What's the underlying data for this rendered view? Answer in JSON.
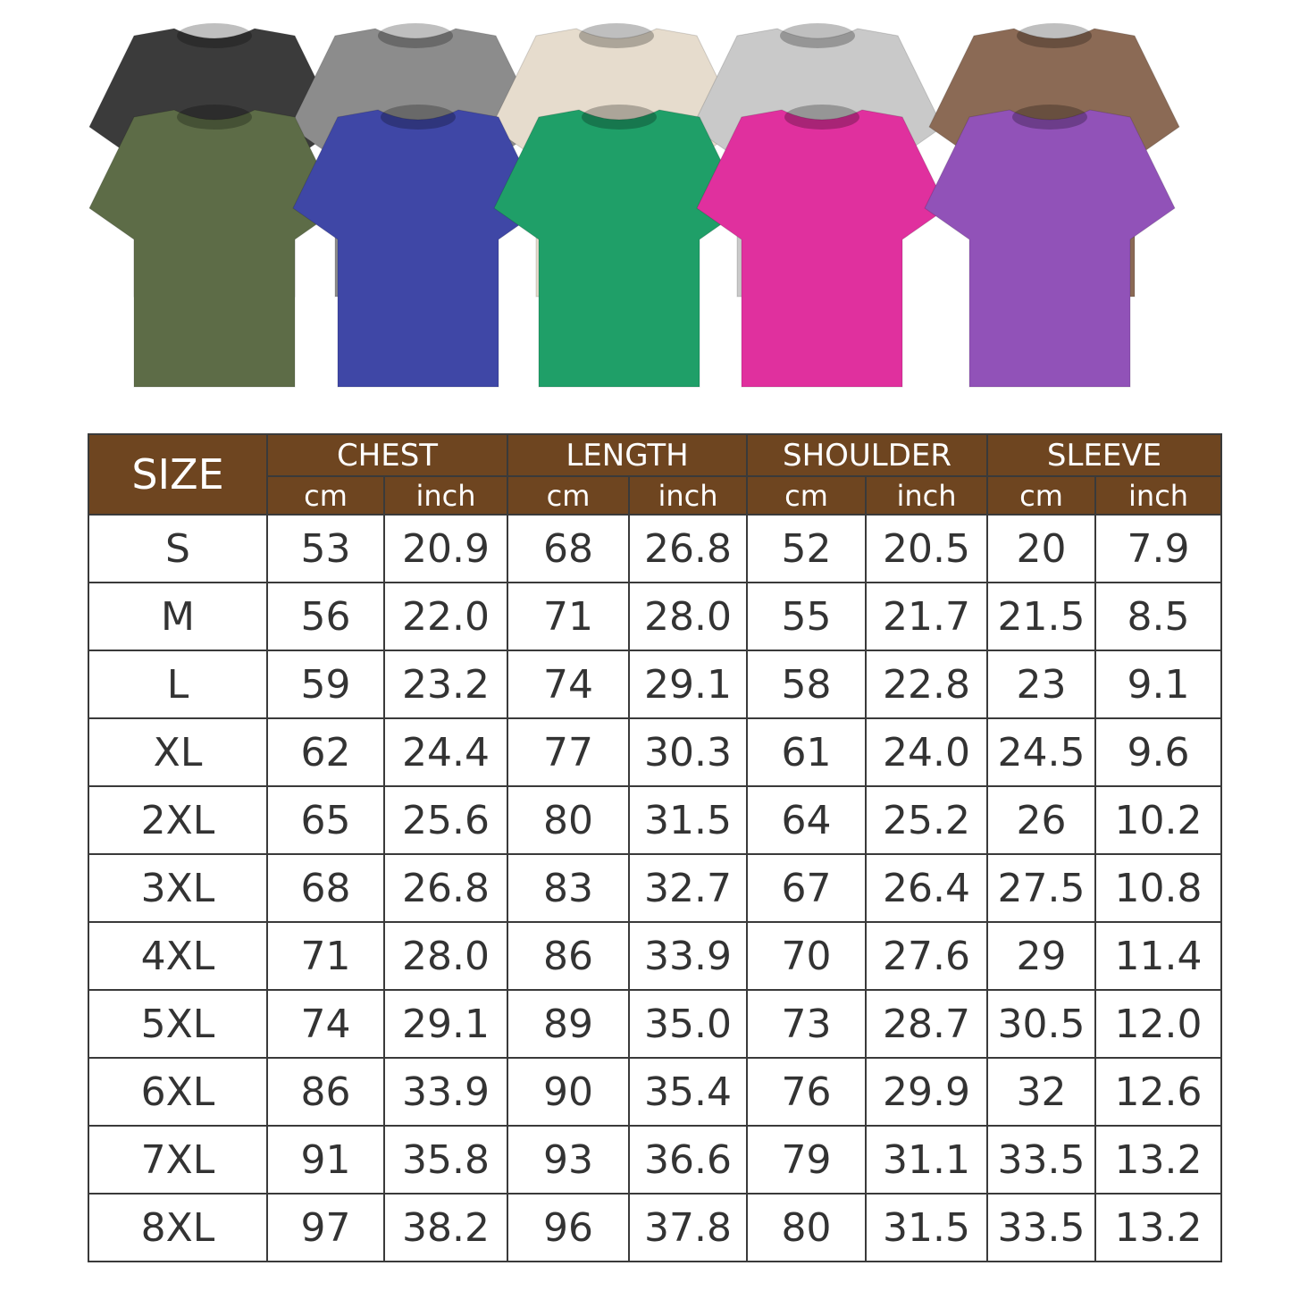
{
  "shirts": [
    {
      "color": "#3b3b3b",
      "row": "back"
    },
    {
      "color": "#8c8c8c",
      "row": "back"
    },
    {
      "color": "#e6dccd",
      "row": "back"
    },
    {
      "color": "#c9c9c9",
      "row": "back"
    },
    {
      "color": "#8b6a55",
      "row": "back"
    },
    {
      "color": "#5d6c47",
      "row": "front"
    },
    {
      "color": "#3f47a6",
      "row": "front"
    },
    {
      "color": "#1f9f68",
      "row": "front"
    },
    {
      "color": "#e0309e",
      "row": "front"
    },
    {
      "color": "#9152b8",
      "row": "front"
    }
  ],
  "table": {
    "header_color": "#6e4520",
    "size_label": "SIZE",
    "groups": [
      "CHEST",
      "LENGTH",
      "SHOULDER",
      "SLEEVE"
    ],
    "units": [
      "cm",
      "inch"
    ],
    "rows": [
      [
        "S",
        "53",
        "20.9",
        "68",
        "26.8",
        "52",
        "20.5",
        "20",
        "7.9"
      ],
      [
        "M",
        "56",
        "22.0",
        "71",
        "28.0",
        "55",
        "21.7",
        "21.5",
        "8.5"
      ],
      [
        "L",
        "59",
        "23.2",
        "74",
        "29.1",
        "58",
        "22.8",
        "23",
        "9.1"
      ],
      [
        "XL",
        "62",
        "24.4",
        "77",
        "30.3",
        "61",
        "24.0",
        "24.5",
        "9.6"
      ],
      [
        "2XL",
        "65",
        "25.6",
        "80",
        "31.5",
        "64",
        "25.2",
        "26",
        "10.2"
      ],
      [
        "3XL",
        "68",
        "26.8",
        "83",
        "32.7",
        "67",
        "26.4",
        "27.5",
        "10.8"
      ],
      [
        "4XL",
        "71",
        "28.0",
        "86",
        "33.9",
        "70",
        "27.6",
        "29",
        "11.4"
      ],
      [
        "5XL",
        "74",
        "29.1",
        "89",
        "35.0",
        "73",
        "28.7",
        "30.5",
        "12.0"
      ],
      [
        "6XL",
        "86",
        "33.9",
        "90",
        "35.4",
        "76",
        "29.9",
        "32",
        "12.6"
      ],
      [
        "7XL",
        "91",
        "35.8",
        "93",
        "36.6",
        "79",
        "31.1",
        "33.5",
        "13.2"
      ],
      [
        "8XL",
        "97",
        "38.2",
        "96",
        "37.8",
        "80",
        "31.5",
        "33.5",
        "13.2"
      ]
    ]
  }
}
